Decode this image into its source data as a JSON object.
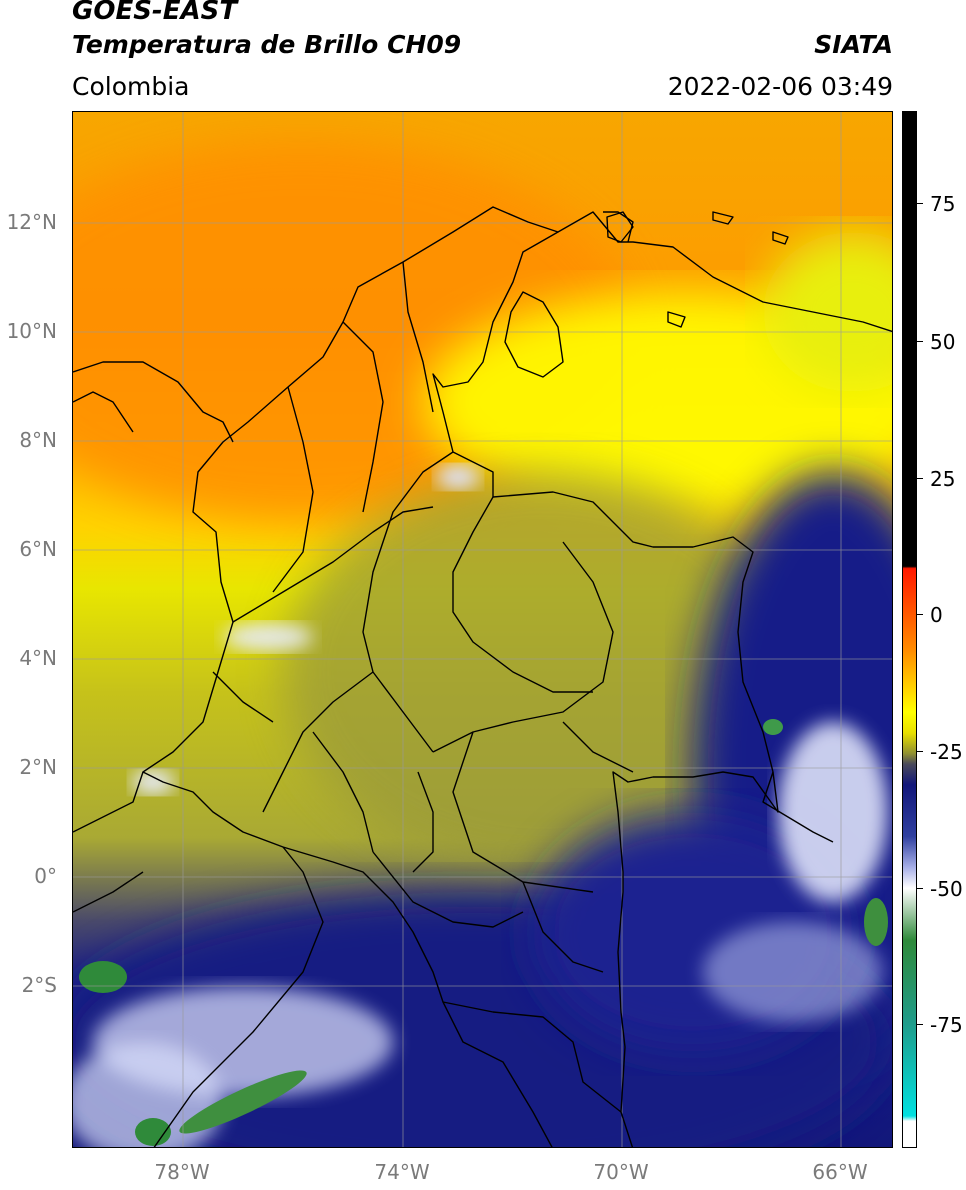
{
  "header": {
    "title_line1": "GOES-EAST",
    "title_line2": "Temperatura de Brillo CH09",
    "region": "Colombia",
    "brand": "SIATA",
    "timestamp": "2022-02-06 03:49"
  },
  "map": {
    "lat_labels": [
      "12°N",
      "10°N",
      "8°N",
      "6°N",
      "4°N",
      "2°N",
      "0°",
      "2°S"
    ],
    "lon_labels": [
      "78°W",
      "74°W",
      "70°W",
      "66°W"
    ]
  },
  "colorbar": {
    "labels": [
      "75",
      "50",
      "25",
      "0",
      "-25",
      "-50",
      "-75"
    ],
    "colors": {
      "cyan": "#00e0e0",
      "teal": "#1f9c8a",
      "green": "#2f8a3a",
      "white": "#ffffff",
      "navy": "#12177a",
      "olive": "#8f8f32",
      "yellow": "#ffff00",
      "orange": "#ff8c00",
      "red": "#ff1800",
      "black": "#000000"
    }
  }
}
